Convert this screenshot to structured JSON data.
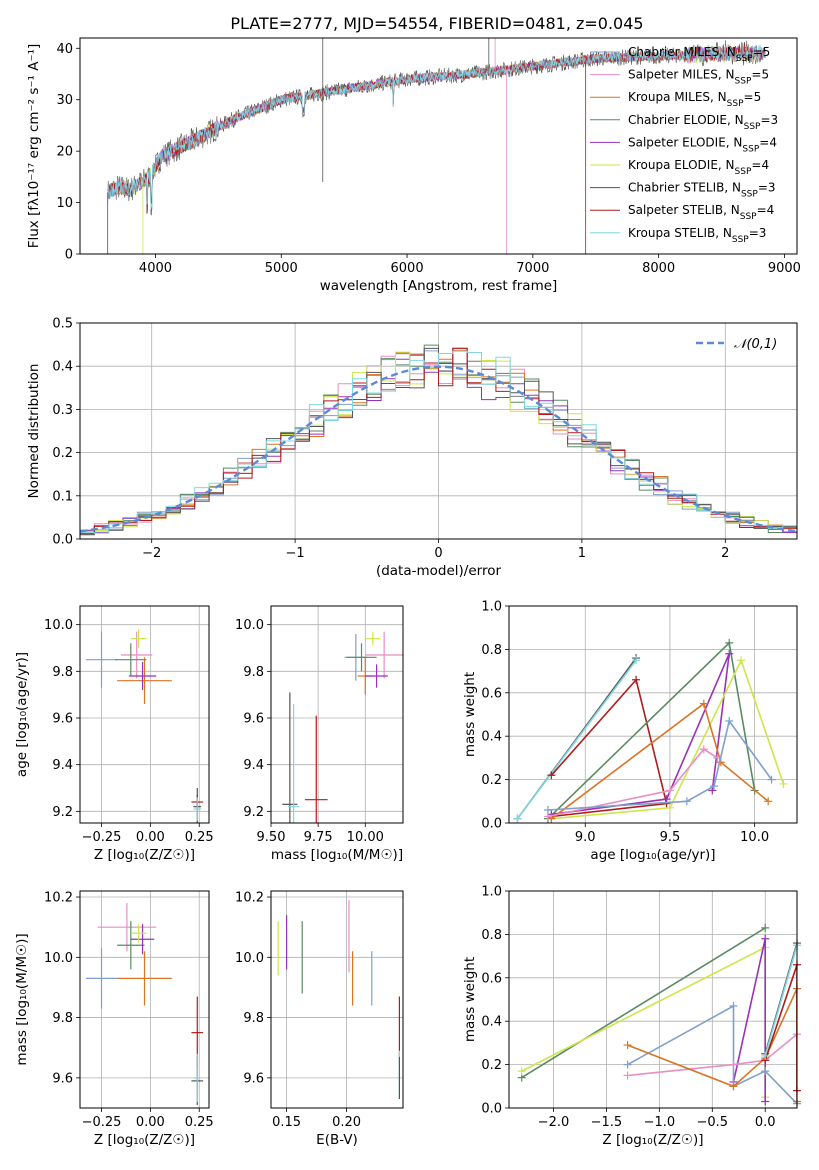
{
  "title": "PLATE=2777, MJD=54554, FIBERID=0481, z=0.045",
  "colors": {
    "chabrier_miles": "#7fa0c8",
    "salpeter_miles": "#e88ec4",
    "kroupa_miles": "#d97524",
    "chabrier_elodie": "#5a8a64",
    "salpeter_elodie": "#9932b8",
    "kroupa_elodie": "#cde64a",
    "chabrier_stelib": "#555555",
    "salpeter_stelib": "#b01c1c",
    "kroupa_stelib": "#7fd8e0",
    "gauss": "#5b8bd8"
  },
  "chart_data": [
    {
      "id": "spectrum",
      "type": "line",
      "xlabel": "wavelength [Angstrom, rest frame]",
      "ylabel": "Flux [fλ10⁻¹⁷ erg cm⁻² s⁻¹ A⁻¹]",
      "xlim": [
        3400,
        9100
      ],
      "ylim": [
        0,
        42
      ],
      "xticks": [
        "4000",
        "5000",
        "6000",
        "7000",
        "8000",
        "9000"
      ],
      "yticks": [
        "0",
        "10",
        "20",
        "30",
        "40"
      ],
      "legend_position": "upper-right",
      "legend": [
        {
          "label": "Chabrier MILES, NSSP=5",
          "color_key": "chabrier_miles"
        },
        {
          "label": "Salpeter MILES, NSSP=5",
          "color_key": "salpeter_miles"
        },
        {
          "label": "Kroupa MILES, NSSP=5",
          "color_key": "kroupa_miles"
        },
        {
          "label": "Chabrier ELODIE, NSSP=3",
          "color_key": "chabrier_elodie"
        },
        {
          "label": "Salpeter ELODIE, NSSP=4",
          "color_key": "salpeter_elodie"
        },
        {
          "label": "Kroupa ELODIE, NSSP=4",
          "color_key": "kroupa_elodie"
        },
        {
          "label": "Chabrier STELIB, NSSP=3",
          "color_key": "chabrier_stelib"
        },
        {
          "label": "Salpeter STELIB, NSSP=4",
          "color_key": "salpeter_stelib"
        },
        {
          "label": "Kroupa STELIB, NSSP=3",
          "color_key": "kroupa_stelib"
        }
      ],
      "continuum": [
        [
          3620,
          12
        ],
        [
          3700,
          13
        ],
        [
          3800,
          12.5
        ],
        [
          3950,
          15
        ],
        [
          4050,
          19
        ],
        [
          4300,
          22
        ],
        [
          4600,
          26
        ],
        [
          5000,
          30
        ],
        [
          5500,
          32
        ],
        [
          6000,
          34
        ],
        [
          6500,
          35
        ],
        [
          7000,
          36.5
        ],
        [
          7500,
          38
        ],
        [
          8000,
          38.5
        ],
        [
          8500,
          39
        ],
        [
          8850,
          39
        ]
      ]
    },
    {
      "id": "residuals",
      "type": "histogram",
      "xlabel": "(data-model)/error",
      "ylabel": "Normed distribution",
      "xlim": [
        -2.5,
        2.5
      ],
      "ylim": [
        0,
        0.5
      ],
      "xticks": [
        "−2",
        "−1",
        "0",
        "1",
        "2"
      ],
      "yticks": [
        "0.0",
        "0.1",
        "0.2",
        "0.3",
        "0.4",
        "0.5"
      ],
      "legend": [
        {
          "label": "𝒩(0,1)",
          "color_key": "gauss"
        }
      ]
    },
    {
      "id": "age_vs_Z",
      "type": "scatter",
      "xlabel": "Z [log₁₀(Z/Z☉)]",
      "ylabel": "age  [log₁₀(age/yr)]",
      "xlim": [
        -0.36,
        0.3
      ],
      "ylim": [
        9.15,
        10.08
      ],
      "xticks": [
        "−0.25",
        "0.00",
        "0.25"
      ],
      "yticks": [
        "9.2",
        "9.4",
        "9.6",
        "9.8",
        "10.0"
      ],
      "points": [
        {
          "k": "chabrier_miles",
          "x": -0.25,
          "y": 9.85,
          "ex": 0.08,
          "ey": 0.12
        },
        {
          "k": "salpeter_miles",
          "x": -0.07,
          "y": 9.87,
          "ex": 0.08,
          "ey": 0.1
        },
        {
          "k": "kroupa_miles",
          "x": -0.03,
          "y": 9.76,
          "ex": 0.14,
          "ey": 0.1
        },
        {
          "k": "chabrier_elodie",
          "x": -0.1,
          "y": 9.85,
          "ex": 0.08,
          "ey": 0.07
        },
        {
          "k": "salpeter_elodie",
          "x": -0.04,
          "y": 9.78,
          "ex": 0.07,
          "ey": 0.06
        },
        {
          "k": "kroupa_elodie",
          "x": -0.06,
          "y": 9.94,
          "ex": 0.04,
          "ey": 0.04
        },
        {
          "k": "chabrier_stelib",
          "x": 0.24,
          "y": 9.22,
          "ex": 0.02,
          "ey": 0.08
        },
        {
          "k": "salpeter_stelib",
          "x": 0.24,
          "y": 9.24,
          "ex": 0.03,
          "ey": 0.03
        },
        {
          "k": "kroupa_stelib",
          "x": 0.24,
          "y": 9.21,
          "ex": 0.02,
          "ey": 0.05
        }
      ]
    },
    {
      "id": "age_vs_mass",
      "type": "scatter",
      "xlabel": "mass [log₁₀(M/M☉)]",
      "xlim": [
        9.5,
        10.2
      ],
      "ylim": [
        9.15,
        10.08
      ],
      "xticks": [
        "9.50",
        "9.75",
        "10.00"
      ],
      "yticks": [
        "9.2",
        "9.4",
        "9.6",
        "9.8",
        "10.0"
      ],
      "points": [
        {
          "k": "chabrier_miles",
          "x": 9.95,
          "y": 9.86,
          "ex": 0.06,
          "ey": 0.1
        },
        {
          "k": "salpeter_miles",
          "x": 10.1,
          "y": 9.87,
          "ex": 0.1,
          "ey": 0.1
        },
        {
          "k": "kroupa_miles",
          "x": 10.0,
          "y": 9.78,
          "ex": 0.04,
          "ey": 0.08
        },
        {
          "k": "chabrier_elodie",
          "x": 9.98,
          "y": 9.86,
          "ex": 0.08,
          "ey": 0.06
        },
        {
          "k": "salpeter_elodie",
          "x": 10.06,
          "y": 9.78,
          "ex": 0.06,
          "ey": 0.05
        },
        {
          "k": "kroupa_elodie",
          "x": 10.04,
          "y": 9.94,
          "ex": 0.04,
          "ey": 0.03
        },
        {
          "k": "chabrier_stelib",
          "x": 9.6,
          "y": 9.23,
          "ex": 0.04,
          "ey": 0.48
        },
        {
          "k": "salpeter_stelib",
          "x": 9.74,
          "y": 9.25,
          "ex": 0.06,
          "ey": 0.36
        },
        {
          "k": "kroupa_stelib",
          "x": 9.62,
          "y": 9.22,
          "ex": 0.03,
          "ey": 0.44
        }
      ]
    },
    {
      "id": "weight_vs_age",
      "type": "line",
      "xlabel": "age  [log₁₀(age/yr)]",
      "ylabel": "mass weight",
      "xlim": [
        8.55,
        10.25
      ],
      "ylim": [
        0,
        1
      ],
      "xticks": [
        "9.0",
        "9.5",
        "10.0"
      ],
      "yticks": [
        "0.0",
        "0.2",
        "0.4",
        "0.6",
        "0.8",
        "1.0"
      ],
      "series": [
        {
          "k": "chabrier_stelib",
          "pts": [
            [
              8.6,
              0.02
            ],
            [
              9.3,
              0.76
            ]
          ]
        },
        {
          "k": "kroupa_stelib",
          "pts": [
            [
              8.6,
              0.02
            ],
            [
              9.3,
              0.75
            ]
          ]
        },
        {
          "k": "salpeter_stelib",
          "pts": [
            [
              8.8,
              0.22
            ],
            [
              9.3,
              0.66
            ],
            [
              9.48,
              0.09
            ],
            [
              8.8,
              0.03
            ]
          ]
        },
        {
          "k": "chabrier_elodie",
          "pts": [
            [
              8.78,
              0.02
            ],
            [
              9.85,
              0.83
            ],
            [
              10.0,
              0.15
            ]
          ]
        },
        {
          "k": "salpeter_elodie",
          "pts": [
            [
              8.8,
              0.04
            ],
            [
              9.48,
              0.11
            ],
            [
              9.85,
              0.78
            ],
            [
              9.75,
              0.15
            ]
          ]
        },
        {
          "k": "kroupa_elodie",
          "pts": [
            [
              8.8,
              0.02
            ],
            [
              9.5,
              0.07
            ],
            [
              9.92,
              0.75
            ],
            [
              10.17,
              0.18
            ]
          ]
        },
        {
          "k": "kroupa_miles",
          "pts": [
            [
              8.8,
              0.02
            ],
            [
              9.7,
              0.55
            ],
            [
              9.8,
              0.28
            ],
            [
              10.08,
              0.1
            ]
          ]
        },
        {
          "k": "salpeter_miles",
          "pts": [
            [
              8.78,
              0.03
            ],
            [
              9.5,
              0.15
            ],
            [
              9.7,
              0.34
            ],
            [
              9.78,
              0.3
            ]
          ]
        },
        {
          "k": "chabrier_miles",
          "pts": [
            [
              8.78,
              0.06
            ],
            [
              9.6,
              0.1
            ],
            [
              9.76,
              0.17
            ],
            [
              9.85,
              0.47
            ],
            [
              10.1,
              0.2
            ]
          ]
        }
      ]
    },
    {
      "id": "mass_vs_Z",
      "type": "scatter",
      "xlabel": "Z [log₁₀(Z/Z☉)]",
      "ylabel": "mass [log₁₀(M/M☉)]",
      "xlim": [
        -0.36,
        0.3
      ],
      "ylim": [
        9.5,
        10.22
      ],
      "xticks": [
        "−0.25",
        "0.00",
        "0.25"
      ],
      "yticks": [
        "9.6",
        "9.8",
        "10.0",
        "10.2"
      ],
      "points": [
        {
          "k": "chabrier_miles",
          "x": -0.25,
          "y": 9.93,
          "ex": 0.08,
          "ey": 0.1
        },
        {
          "k": "salpeter_miles",
          "x": -0.12,
          "y": 10.1,
          "ex": 0.15,
          "ey": 0.08
        },
        {
          "k": "kroupa_miles",
          "x": -0.03,
          "y": 9.93,
          "ex": 0.14,
          "ey": 0.09
        },
        {
          "k": "chabrier_elodie",
          "x": -0.1,
          "y": 10.04,
          "ex": 0.07,
          "ey": 0.08
        },
        {
          "k": "salpeter_elodie",
          "x": -0.04,
          "y": 10.06,
          "ex": 0.06,
          "ey": 0.05
        },
        {
          "k": "kroupa_elodie",
          "x": -0.06,
          "y": 10.08,
          "ex": 0.04,
          "ey": 0.03
        },
        {
          "k": "chabrier_stelib",
          "x": 0.24,
          "y": 9.59,
          "ex": 0.03,
          "ey": 0.08
        },
        {
          "k": "salpeter_stelib",
          "x": 0.24,
          "y": 9.75,
          "ex": 0.03,
          "ey": 0.12
        },
        {
          "k": "kroupa_stelib",
          "x": 0.24,
          "y": 9.6,
          "ex": 0.02,
          "ey": 0.08
        }
      ]
    },
    {
      "id": "mass_vs_ebv",
      "type": "scatter",
      "xlabel": "E(B-V)",
      "xlim": [
        0.137,
        0.247
      ],
      "ylim": [
        9.5,
        10.22
      ],
      "xticks": [
        "0.15",
        "0.20"
      ],
      "yticks": [
        "9.6",
        "9.8",
        "10.0",
        "10.2"
      ],
      "points": [
        {
          "k": "kroupa_elodie",
          "x": 0.143,
          "y": 10.03,
          "ey": 0.09
        },
        {
          "k": "salpeter_elodie",
          "x": 0.15,
          "y": 10.05,
          "ey": 0.09
        },
        {
          "k": "chabrier_elodie",
          "x": 0.163,
          "y": 10.0,
          "ey": 0.12
        },
        {
          "k": "salpeter_miles",
          "x": 0.202,
          "y": 10.07,
          "ey": 0.12
        },
        {
          "k": "kroupa_miles",
          "x": 0.205,
          "y": 9.93,
          "ey": 0.09
        },
        {
          "k": "chabrier_miles",
          "x": 0.221,
          "y": 9.93,
          "ey": 0.09
        },
        {
          "k": "salpeter_stelib",
          "x": 0.244,
          "y": 9.77,
          "ey": 0.1
        },
        {
          "k": "kroupa_stelib",
          "x": 0.244,
          "y": 9.61,
          "ey": 0.08
        },
        {
          "k": "chabrier_stelib",
          "x": 0.244,
          "y": 9.6,
          "ey": 0.07
        }
      ]
    },
    {
      "id": "weight_vs_Z",
      "type": "line",
      "xlabel": "Z [log₁₀(Z/Z☉)]",
      "ylabel": "mass weight",
      "xlim": [
        -2.42,
        0.3
      ],
      "ylim": [
        0,
        1
      ],
      "xticks": [
        "−2.0",
        "−1.5",
        "−1.0",
        "−0.5",
        "0.0"
      ],
      "yticks": [
        "0.0",
        "0.2",
        "0.4",
        "0.6",
        "0.8",
        "1.0"
      ],
      "series": [
        {
          "k": "chabrier_elodie",
          "pts": [
            [
              -2.3,
              0.14
            ],
            [
              0.0,
              0.83
            ]
          ]
        },
        {
          "k": "kroupa_elodie",
          "pts": [
            [
              -2.3,
              0.17
            ],
            [
              0.0,
              0.74
            ],
            [
              0.0,
              0.05
            ]
          ]
        },
        {
          "k": "salpeter_elodie",
          "pts": [
            [
              -0.3,
              0.12
            ],
            [
              0.0,
              0.78
            ],
            [
              0.0,
              0.03
            ]
          ]
        },
        {
          "k": "chabrier_miles",
          "pts": [
            [
              -1.3,
              0.2
            ],
            [
              -0.3,
              0.47
            ],
            [
              -0.3,
              0.1
            ],
            [
              0.0,
              0.17
            ],
            [
              0.3,
              0.02
            ]
          ]
        },
        {
          "k": "salpeter_miles",
          "pts": [
            [
              -1.3,
              0.15
            ],
            [
              -0.3,
              0.2
            ],
            [
              0.0,
              0.22
            ],
            [
              0.3,
              0.34
            ]
          ]
        },
        {
          "k": "kroupa_miles",
          "pts": [
            [
              -1.3,
              0.29
            ],
            [
              -0.3,
              0.1
            ],
            [
              0.0,
              0.23
            ],
            [
              0.3,
              0.55
            ],
            [
              0.3,
              0.03
            ]
          ]
        },
        {
          "k": "chabrier_stelib",
          "pts": [
            [
              0.0,
              0.25
            ],
            [
              0.3,
              0.76
            ]
          ]
        },
        {
          "k": "salpeter_stelib",
          "pts": [
            [
              0.0,
              0.22
            ],
            [
              0.3,
              0.66
            ],
            [
              0.3,
              0.08
            ]
          ]
        },
        {
          "k": "kroupa_stelib",
          "pts": [
            [
              0.0,
              0.24
            ],
            [
              0.3,
              0.75
            ]
          ]
        }
      ]
    }
  ]
}
